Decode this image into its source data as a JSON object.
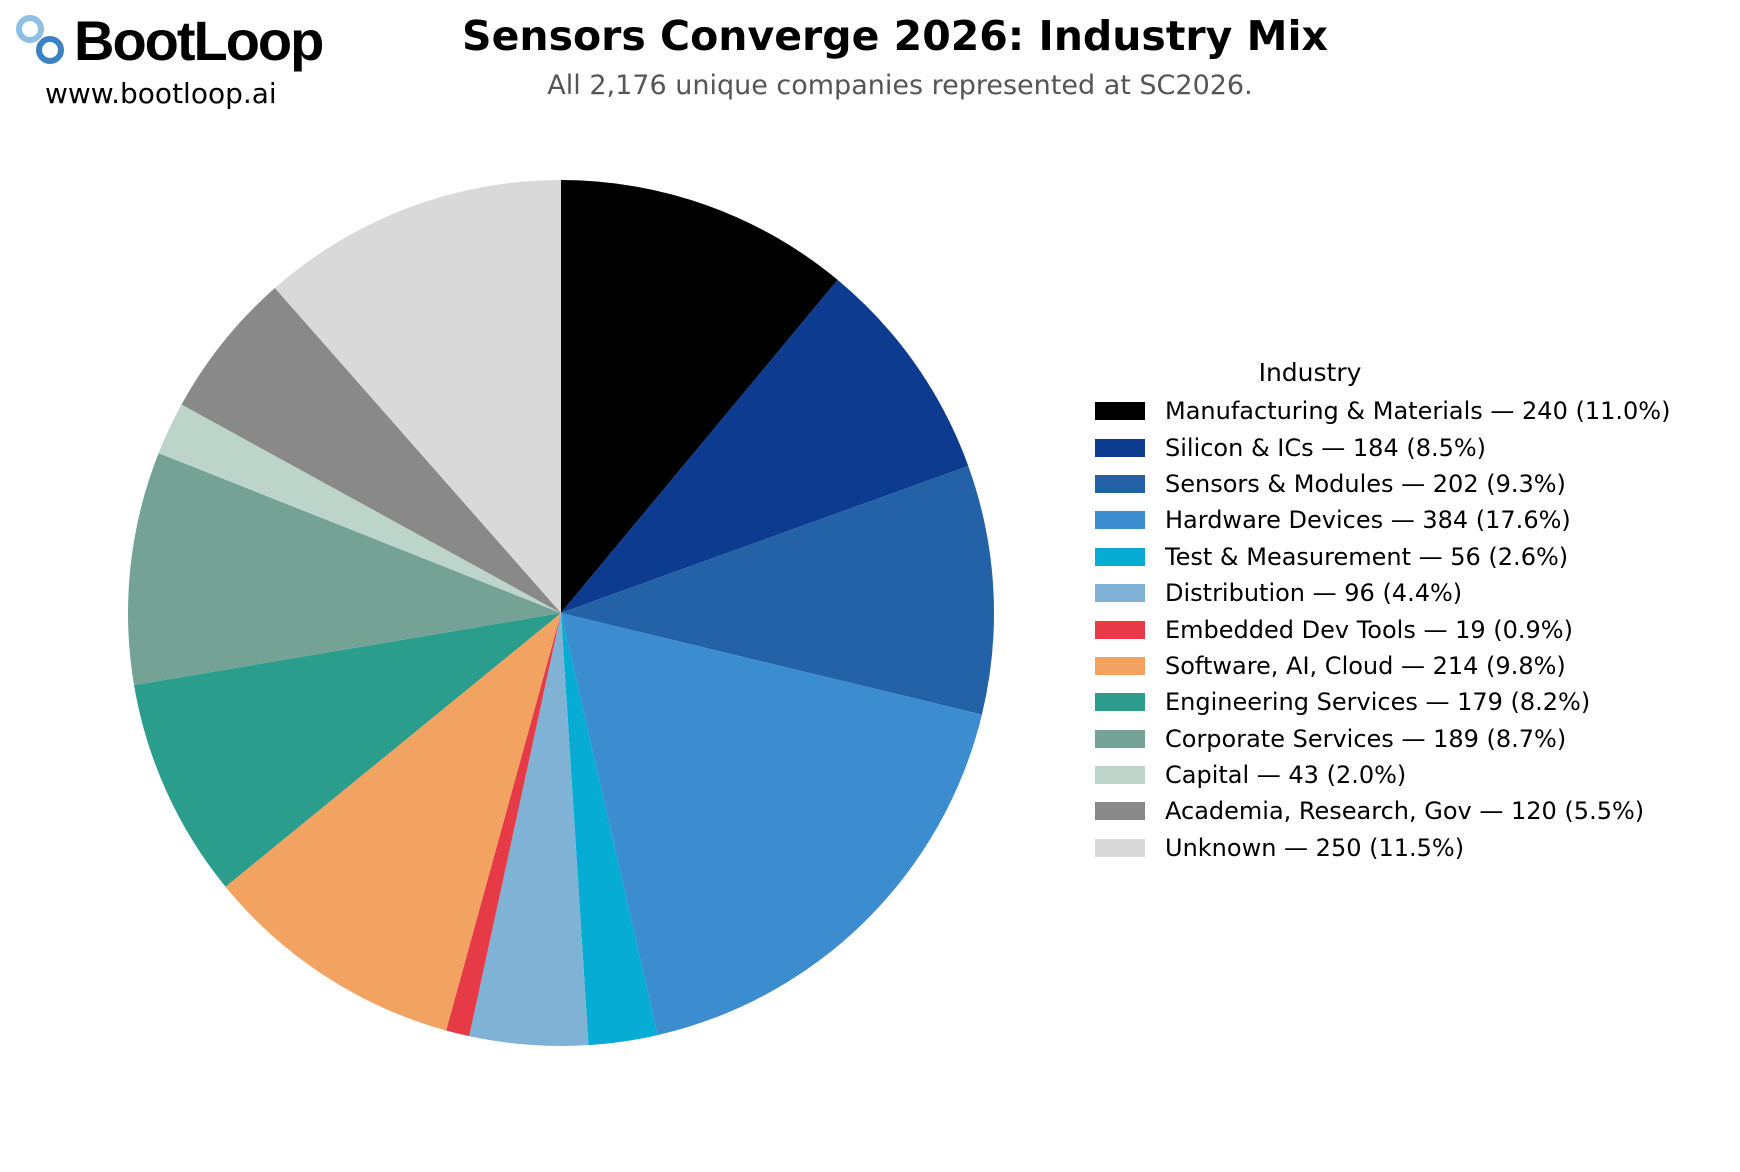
{
  "brand": {
    "name": "BootLoop",
    "url": "www.bootloop.ai",
    "icon": "bootloop-logo-icon",
    "colors": {
      "light": "#8FBFE4",
      "dark": "#3B82C4"
    }
  },
  "chart_data": {
    "type": "pie",
    "title": "Sensors Converge 2026: Industry Mix",
    "subtitle": "All 2,176 unique companies represented at SC2026.",
    "legend_title": "Industry",
    "legend_position": "right",
    "start_angle": "12 o'clock",
    "direction": "clockwise",
    "total": 2176,
    "slices": [
      {
        "label": "Manufacturing & Materials",
        "value": 240,
        "percent": "11.0%",
        "color": "#000000",
        "legend": "Manufacturing & Materials  —  240  (11.0%)"
      },
      {
        "label": "Silicon & ICs",
        "value": 184,
        "percent": "8.5%",
        "color": "#0D3B8F",
        "legend": "Silicon & ICs  —  184  (8.5%)"
      },
      {
        "label": "Sensors & Modules",
        "value": 202,
        "percent": "9.3%",
        "color": "#2462A8",
        "legend": "Sensors & Modules  —  202  (9.3%)"
      },
      {
        "label": "Hardware Devices",
        "value": 384,
        "percent": "17.6%",
        "color": "#3B8DD0",
        "legend": "Hardware Devices  —  384  (17.6%)"
      },
      {
        "label": "Test & Measurement",
        "value": 56,
        "percent": "2.6%",
        "color": "#06ACD4",
        "legend": "Test & Measurement  —  56  (2.6%)"
      },
      {
        "label": "Distribution",
        "value": 96,
        "percent": "4.4%",
        "color": "#80B2D6",
        "legend": "Distribution  —  96  (4.4%)"
      },
      {
        "label": "Embedded Dev Tools",
        "value": 19,
        "percent": "0.9%",
        "color": "#E63A46",
        "legend": "Embedded Dev Tools  —  19  (0.9%)"
      },
      {
        "label": "Software, AI, Cloud",
        "value": 214,
        "percent": "9.8%",
        "color": "#F2A361",
        "legend": "Software, AI, Cloud  —  214  (9.8%)"
      },
      {
        "label": "Engineering Services",
        "value": 179,
        "percent": "8.2%",
        "color": "#2A9D8C",
        "legend": "Engineering Services  —  179  (8.2%)"
      },
      {
        "label": "Corporate Services",
        "value": 189,
        "percent": "8.7%",
        "color": "#74A395",
        "legend": "Corporate Services  —  189  (8.7%)"
      },
      {
        "label": "Capital",
        "value": 43,
        "percent": "2.0%",
        "color": "#BDD4CA",
        "legend": "Capital  —  43  (2.0%)"
      },
      {
        "label": "Academia, Research, Gov",
        "value": 120,
        "percent": "5.5%",
        "color": "#898989",
        "legend": "Academia, Research, Gov  —  120  (5.5%)"
      },
      {
        "label": "Unknown",
        "value": 250,
        "percent": "11.5%",
        "color": "#D9D9D9",
        "legend": "Unknown  —  250  (11.5%)"
      }
    ]
  }
}
